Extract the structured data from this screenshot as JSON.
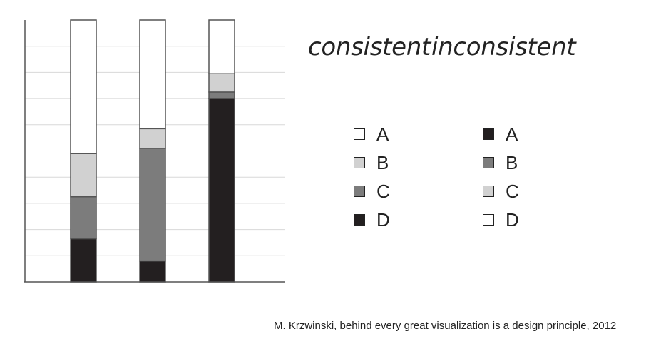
{
  "headings": {
    "consistent": "consistent",
    "inconsistent": "inconsistent"
  },
  "legend": {
    "consistent": [
      {
        "label": "A",
        "color": "#ffffff"
      },
      {
        "label": "B",
        "color": "#d1d1d1"
      },
      {
        "label": "C",
        "color": "#7c7c7c"
      },
      {
        "label": "D",
        "color": "#231f20"
      }
    ],
    "inconsistent": [
      {
        "label": "A",
        "color": "#231f20"
      },
      {
        "label": "B",
        "color": "#7c7c7c"
      },
      {
        "label": "C",
        "color": "#d1d1d1"
      },
      {
        "label": "D",
        "color": "#ffffff"
      }
    ]
  },
  "citation": "M. Krzwinski, behind every great visualization is a design principle, 2012",
  "chart_data": {
    "type": "bar",
    "stacked": true,
    "categories": [
      "",
      "",
      ""
    ],
    "ylim": [
      0,
      100
    ],
    "grid": true,
    "stack_order_bottom_to_top": [
      "D",
      "C",
      "B",
      "A"
    ],
    "series": [
      {
        "name": "D",
        "values": [
          16.5,
          8,
          70
        ]
      },
      {
        "name": "C",
        "values": [
          16,
          43,
          2.5
        ]
      },
      {
        "name": "B",
        "values": [
          16.5,
          7.5,
          7
        ]
      },
      {
        "name": "A",
        "values": [
          51,
          41.5,
          20.5
        ]
      }
    ],
    "colors": {
      "A": "#ffffff",
      "B": "#d1d1d1",
      "C": "#7c7c7c",
      "D": "#231f20"
    }
  }
}
